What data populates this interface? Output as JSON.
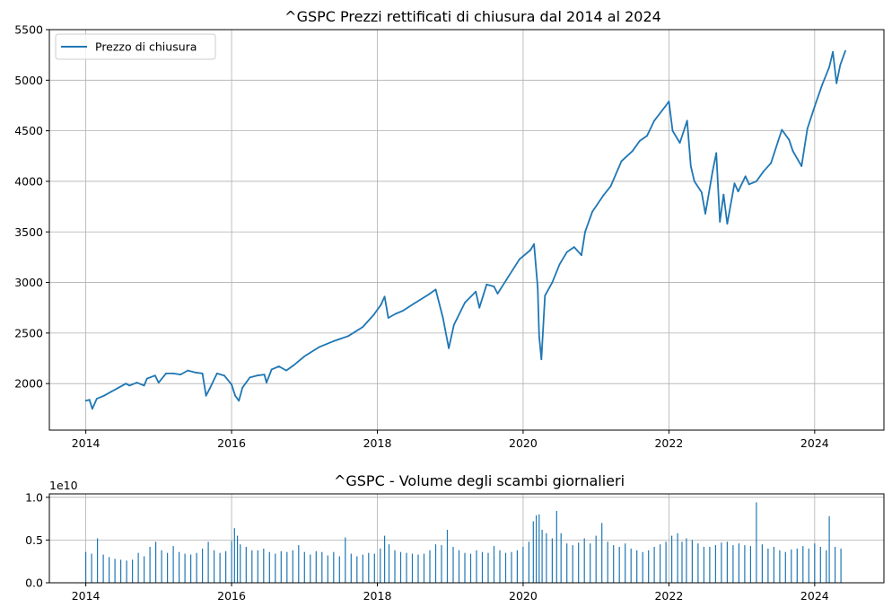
{
  "chart_data": [
    {
      "type": "line",
      "title": "^GSPC Prezzi rettificati di chiusura dal 2014 al 2024",
      "xlabel": "",
      "ylabel": "",
      "xlim": [
        2013.5,
        2024.95
      ],
      "ylim": [
        1540,
        5500
      ],
      "x_ticks": [
        2014,
        2016,
        2018,
        2020,
        2022,
        2024
      ],
      "x_tick_labels": [
        "2014",
        "2016",
        "2018",
        "2020",
        "2022",
        "2024"
      ],
      "y_ticks": [
        2000,
        2500,
        3000,
        3500,
        4000,
        4500,
        5000,
        5500
      ],
      "y_tick_labels": [
        "2000",
        "2500",
        "3000",
        "3500",
        "4000",
        "4500",
        "5000",
        "5500"
      ],
      "grid": true,
      "legend_position": "top-left",
      "color": "#1f77b4",
      "series": [
        {
          "name": "Prezzo di chiusura",
          "x": [
            2014.0,
            2014.05,
            2014.09,
            2014.15,
            2014.25,
            2014.35,
            2014.45,
            2014.55,
            2014.6,
            2014.7,
            2014.8,
            2014.84,
            2014.95,
            2015.0,
            2015.1,
            2015.2,
            2015.3,
            2015.4,
            2015.5,
            2015.6,
            2015.65,
            2015.7,
            2015.8,
            2015.9,
            2016.0,
            2016.05,
            2016.1,
            2016.15,
            2016.25,
            2016.35,
            2016.45,
            2016.48,
            2016.55,
            2016.65,
            2016.75,
            2016.85,
            2016.95,
            2017.0,
            2017.2,
            2017.4,
            2017.6,
            2017.8,
            2017.95,
            2018.05,
            2018.1,
            2018.15,
            2018.25,
            2018.35,
            2018.5,
            2018.7,
            2018.8,
            2018.9,
            2018.98,
            2019.05,
            2019.2,
            2019.35,
            2019.4,
            2019.5,
            2019.6,
            2019.65,
            2019.8,
            2019.95,
            2020.1,
            2020.15,
            2020.2,
            2020.22,
            2020.25,
            2020.3,
            2020.4,
            2020.5,
            2020.6,
            2020.7,
            2020.8,
            2020.85,
            2020.95,
            2021.1,
            2021.2,
            2021.35,
            2021.5,
            2021.6,
            2021.7,
            2021.8,
            2021.95,
            2022.0,
            2022.05,
            2022.15,
            2022.25,
            2022.3,
            2022.35,
            2022.45,
            2022.5,
            2022.6,
            2022.65,
            2022.7,
            2022.75,
            2022.8,
            2022.9,
            2022.95,
            2023.05,
            2023.1,
            2023.2,
            2023.3,
            2023.4,
            2023.5,
            2023.55,
            2023.65,
            2023.7,
            2023.82,
            2023.9,
            2024.0,
            2024.1,
            2024.2,
            2024.25,
            2024.3,
            2024.35,
            2024.42
          ],
          "values": [
            1830,
            1840,
            1750,
            1850,
            1880,
            1920,
            1960,
            2000,
            1980,
            2010,
            1980,
            2050,
            2080,
            2010,
            2100,
            2100,
            2090,
            2130,
            2110,
            2100,
            1880,
            1950,
            2100,
            2080,
            1990,
            1880,
            1830,
            1960,
            2060,
            2080,
            2090,
            2010,
            2140,
            2170,
            2130,
            2180,
            2240,
            2270,
            2360,
            2420,
            2470,
            2560,
            2680,
            2780,
            2860,
            2650,
            2690,
            2720,
            2790,
            2880,
            2930,
            2650,
            2350,
            2580,
            2800,
            2910,
            2750,
            2980,
            2960,
            2890,
            3060,
            3230,
            3320,
            3380,
            2950,
            2470,
            2240,
            2870,
            3000,
            3180,
            3300,
            3350,
            3270,
            3500,
            3700,
            3860,
            3950,
            4200,
            4300,
            4400,
            4450,
            4600,
            4740,
            4790,
            4500,
            4380,
            4600,
            4150,
            4000,
            3890,
            3680,
            4100,
            4280,
            3600,
            3870,
            3580,
            3980,
            3900,
            4050,
            3970,
            4000,
            4100,
            4180,
            4400,
            4510,
            4410,
            4300,
            4150,
            4520,
            4740,
            4950,
            5130,
            5280,
            4970,
            5150,
            5290
          ]
        }
      ]
    },
    {
      "type": "bar",
      "title": "^GSPC - Volume degli scambi giornalieri",
      "xlabel": "",
      "ylabel": "",
      "xlim": [
        2013.5,
        2024.95
      ],
      "ylim": [
        0,
        1.04
      ],
      "y_multiplier": "1e10",
      "x_ticks": [
        2014,
        2016,
        2018,
        2020,
        2022,
        2024
      ],
      "x_tick_labels": [
        "2014",
        "2016",
        "2018",
        "2020",
        "2022",
        "2024"
      ],
      "y_ticks": [
        0,
        0.5,
        1.0
      ],
      "y_tick_labels": [
        "0.0",
        "0.5",
        "1.0"
      ],
      "grid": true,
      "color": "#1f77b4",
      "series": [
        {
          "name": "",
          "x": [
            2014.0,
            2014.08,
            2014.16,
            2014.24,
            2014.32,
            2014.4,
            2014.48,
            2014.56,
            2014.64,
            2014.72,
            2014.8,
            2014.88,
            2014.96,
            2015.04,
            2015.12,
            2015.2,
            2015.28,
            2015.36,
            2015.44,
            2015.52,
            2015.6,
            2015.68,
            2015.76,
            2015.84,
            2015.92,
            2016.0,
            2016.04,
            2016.08,
            2016.12,
            2016.2,
            2016.28,
            2016.36,
            2016.44,
            2016.52,
            2016.6,
            2016.68,
            2016.76,
            2016.84,
            2016.92,
            2017.0,
            2017.08,
            2017.16,
            2017.24,
            2017.32,
            2017.4,
            2017.48,
            2017.56,
            2017.64,
            2017.72,
            2017.8,
            2017.88,
            2017.96,
            2018.04,
            2018.1,
            2018.16,
            2018.24,
            2018.32,
            2018.4,
            2018.48,
            2018.56,
            2018.64,
            2018.72,
            2018.8,
            2018.88,
            2018.96,
            2019.04,
            2019.12,
            2019.2,
            2019.28,
            2019.36,
            2019.44,
            2019.52,
            2019.6,
            2019.68,
            2019.76,
            2019.84,
            2019.92,
            2020.0,
            2020.08,
            2020.14,
            2020.18,
            2020.22,
            2020.26,
            2020.32,
            2020.4,
            2020.46,
            2020.52,
            2020.6,
            2020.68,
            2020.76,
            2020.84,
            2020.92,
            2021.0,
            2021.08,
            2021.16,
            2021.24,
            2021.32,
            2021.4,
            2021.48,
            2021.56,
            2021.64,
            2021.72,
            2021.8,
            2021.88,
            2021.96,
            2022.04,
            2022.12,
            2022.18,
            2022.24,
            2022.32,
            2022.4,
            2022.48,
            2022.56,
            2022.64,
            2022.72,
            2022.8,
            2022.88,
            2022.96,
            2023.04,
            2023.12,
            2023.2,
            2023.28,
            2023.36,
            2023.44,
            2023.52,
            2023.6,
            2023.68,
            2023.76,
            2023.84,
            2023.92,
            2024.0,
            2024.08,
            2024.16,
            2024.2,
            2024.28,
            2024.36
          ],
          "values": [
            0.36,
            0.34,
            0.52,
            0.33,
            0.3,
            0.28,
            0.27,
            0.26,
            0.27,
            0.35,
            0.31,
            0.42,
            0.48,
            0.38,
            0.35,
            0.43,
            0.36,
            0.34,
            0.33,
            0.35,
            0.4,
            0.48,
            0.38,
            0.35,
            0.37,
            0.49,
            0.64,
            0.55,
            0.45,
            0.42,
            0.38,
            0.38,
            0.4,
            0.36,
            0.34,
            0.37,
            0.36,
            0.38,
            0.44,
            0.36,
            0.33,
            0.37,
            0.36,
            0.32,
            0.36,
            0.31,
            0.53,
            0.34,
            0.31,
            0.33,
            0.35,
            0.34,
            0.4,
            0.55,
            0.45,
            0.38,
            0.36,
            0.35,
            0.34,
            0.33,
            0.34,
            0.38,
            0.45,
            0.44,
            0.62,
            0.42,
            0.38,
            0.35,
            0.34,
            0.38,
            0.36,
            0.35,
            0.43,
            0.38,
            0.35,
            0.36,
            0.38,
            0.42,
            0.48,
            0.72,
            0.79,
            0.8,
            0.62,
            0.58,
            0.52,
            0.84,
            0.58,
            0.46,
            0.44,
            0.47,
            0.52,
            0.46,
            0.55,
            0.7,
            0.48,
            0.44,
            0.42,
            0.46,
            0.4,
            0.38,
            0.36,
            0.38,
            0.42,
            0.45,
            0.48,
            0.55,
            0.58,
            0.48,
            0.52,
            0.5,
            0.46,
            0.42,
            0.42,
            0.44,
            0.47,
            0.48,
            0.44,
            0.46,
            0.44,
            0.43,
            0.94,
            0.45,
            0.4,
            0.42,
            0.38,
            0.36,
            0.39,
            0.4,
            0.43,
            0.4,
            0.46,
            0.42,
            0.38,
            0.78,
            0.42,
            0.4
          ]
        }
      ]
    }
  ]
}
